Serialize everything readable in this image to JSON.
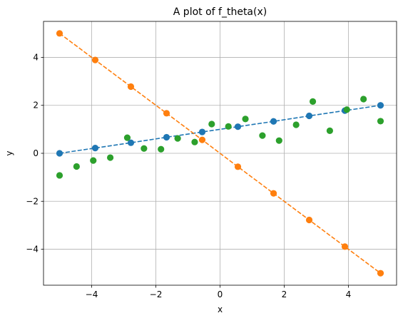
{
  "chart_data": {
    "type": "scatter",
    "title": "A plot of f_theta(x)",
    "xlabel": "x",
    "ylabel": "y",
    "xlim": [
      -5.5,
      5.5
    ],
    "ylim": [
      -5.5,
      5.5
    ],
    "xticks": [
      -4,
      -2,
      0,
      2,
      4
    ],
    "yticks": [
      -4,
      -2,
      0,
      2,
      4
    ],
    "xtick_labels": [
      "−4",
      "−2",
      "0",
      "2",
      "4"
    ],
    "ytick_labels": [
      "−4",
      "−2",
      "0",
      "2",
      "4"
    ],
    "grid": true,
    "legend": "none",
    "series": [
      {
        "style": "dashed-line-with-markers",
        "color": "#1f77b4",
        "x": [
          -5.0,
          -3.889,
          -2.778,
          -1.667,
          -0.556,
          0.556,
          1.667,
          2.778,
          3.889,
          5.0
        ],
        "y": [
          0.0,
          0.22,
          0.44,
          0.67,
          0.89,
          1.11,
          1.33,
          1.56,
          1.78,
          2.0
        ]
      },
      {
        "style": "dashed-line-with-markers",
        "color": "#ff7f0e",
        "x": [
          -5.0,
          -3.889,
          -2.778,
          -1.667,
          -0.556,
          0.556,
          1.667,
          2.778,
          3.889,
          5.0
        ],
        "y": [
          5.0,
          3.89,
          2.78,
          1.67,
          0.56,
          -0.56,
          -1.67,
          -2.78,
          -3.89,
          -5.0
        ]
      },
      {
        "style": "markers",
        "color": "#2ca02c",
        "x": [
          -5.0,
          -4.47,
          -3.95,
          -3.42,
          -2.89,
          -2.37,
          -1.84,
          -1.32,
          -0.79,
          -0.26,
          0.26,
          0.79,
          1.32,
          1.84,
          2.37,
          2.89,
          3.42,
          3.95,
          4.47,
          5.0
        ],
        "y": [
          -0.92,
          -0.55,
          -0.3,
          -0.18,
          0.65,
          0.2,
          0.17,
          0.62,
          0.47,
          1.22,
          1.12,
          1.43,
          0.74,
          0.53,
          1.19,
          2.16,
          0.94,
          1.82,
          2.26,
          1.34
        ]
      }
    ]
  }
}
